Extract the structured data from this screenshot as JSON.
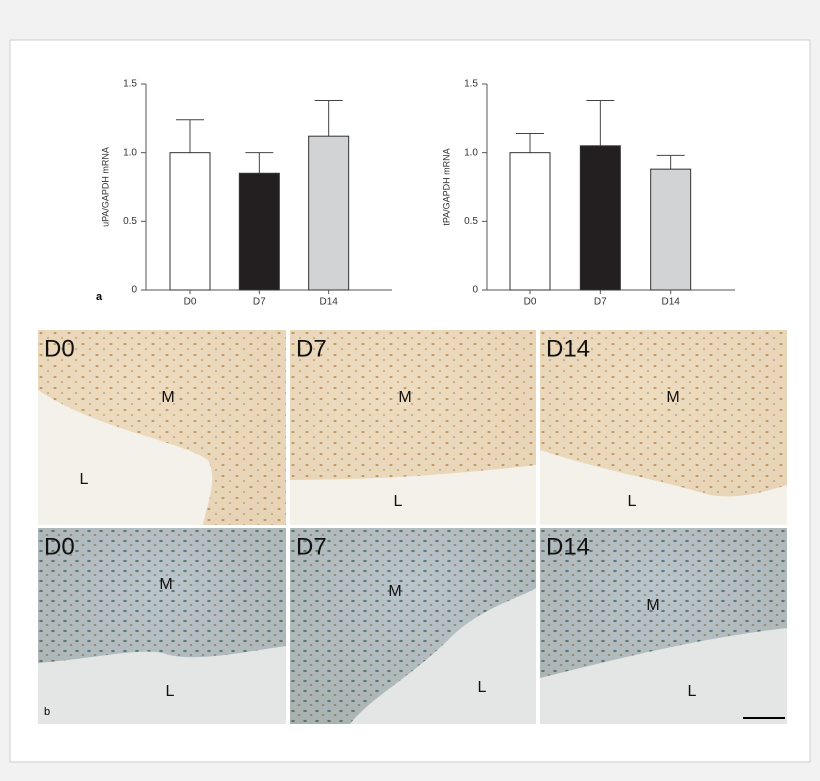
{
  "chart_data": [
    {
      "type": "bar",
      "ylabel": "uPA/GAPDH mRNA",
      "categories": [
        "D0",
        "D7",
        "D14"
      ],
      "values": [
        1.0,
        0.85,
        1.12
      ],
      "errors": [
        0.24,
        0.15,
        0.26
      ],
      "colors": [
        "#ffffff",
        "#231f20",
        "#d1d3d4"
      ],
      "ylim": [
        0,
        1.5
      ],
      "yticks": [
        0,
        0.5,
        {
          "value": 1.0,
          "label": "1.0"
        },
        1.5
      ]
    },
    {
      "type": "bar",
      "ylabel": "tPA/GAPDH mRNA",
      "categories": [
        "D0",
        "D7",
        "D14"
      ],
      "values": [
        1.0,
        1.05,
        0.88
      ],
      "errors": [
        0.14,
        0.33,
        0.1
      ],
      "colors": [
        "#ffffff",
        "#231f20",
        "#d1d3d4"
      ],
      "ylim": [
        0,
        1.5
      ],
      "yticks": [
        0,
        0.5,
        {
          "value": 1.0,
          "label": "1.0"
        },
        1.5
      ]
    }
  ],
  "panel_a": "a",
  "micrographs": {
    "label": "b",
    "panels": [
      {
        "day": "D0",
        "m": "M",
        "l": "L"
      },
      {
        "day": "D7",
        "m": "M",
        "l": "L"
      },
      {
        "day": "D14",
        "m": "M",
        "l": "L"
      },
      {
        "day": "D0",
        "m": "M",
        "l": "L"
      },
      {
        "day": "D7",
        "m": "M",
        "l": "L"
      },
      {
        "day": "D14",
        "m": "M",
        "l": "L"
      }
    ]
  }
}
